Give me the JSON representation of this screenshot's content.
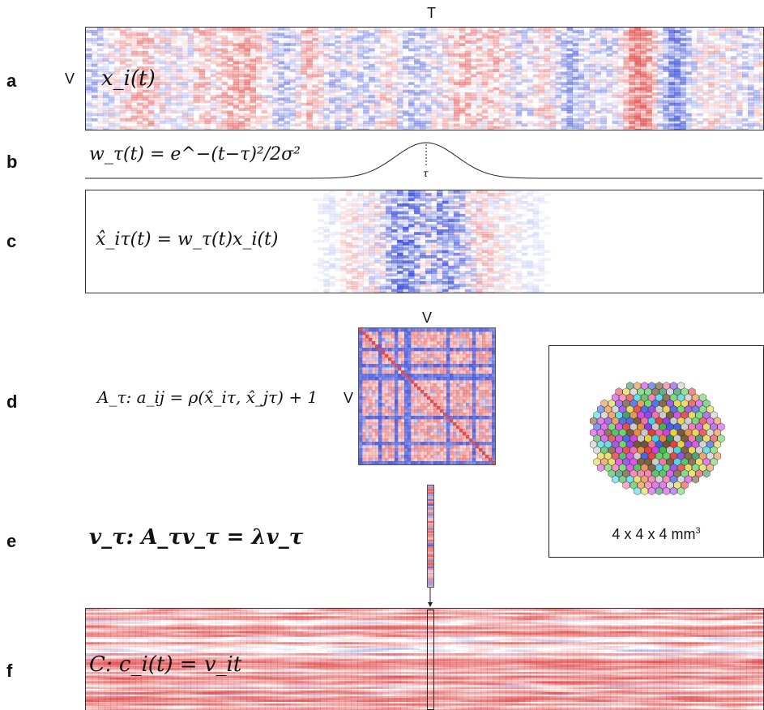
{
  "panels": {
    "a": {
      "letter": "a",
      "equation": "x_i(t)"
    },
    "b": {
      "letter": "b",
      "equation": "w_τ(t) = e^−(t−τ)²/2σ²",
      "peak_label": "τ"
    },
    "c": {
      "letter": "c",
      "equation": "x̂_iτ(t) = w_τ(t)x_i(t)"
    },
    "d": {
      "letter": "d",
      "equation": "A_τ: a_ij = ρ(x̂_iτ, x̂_jτ) + 1"
    },
    "e": {
      "letter": "e",
      "equation": "v_τ: A_τv_τ = λv_τ"
    },
    "f": {
      "letter": "f",
      "equation": "C: c_i(t) = v_it"
    }
  },
  "axes": {
    "time": "T",
    "voxels": "V",
    "matrix_top": "V",
    "matrix_left": "V"
  },
  "brain": {
    "caption_text": "4 x 4 x 4 mm",
    "caption_sup": "3"
  },
  "colors": {
    "red": "#e04545",
    "blue": "#3a4fd8",
    "frame": "#333333"
  }
}
